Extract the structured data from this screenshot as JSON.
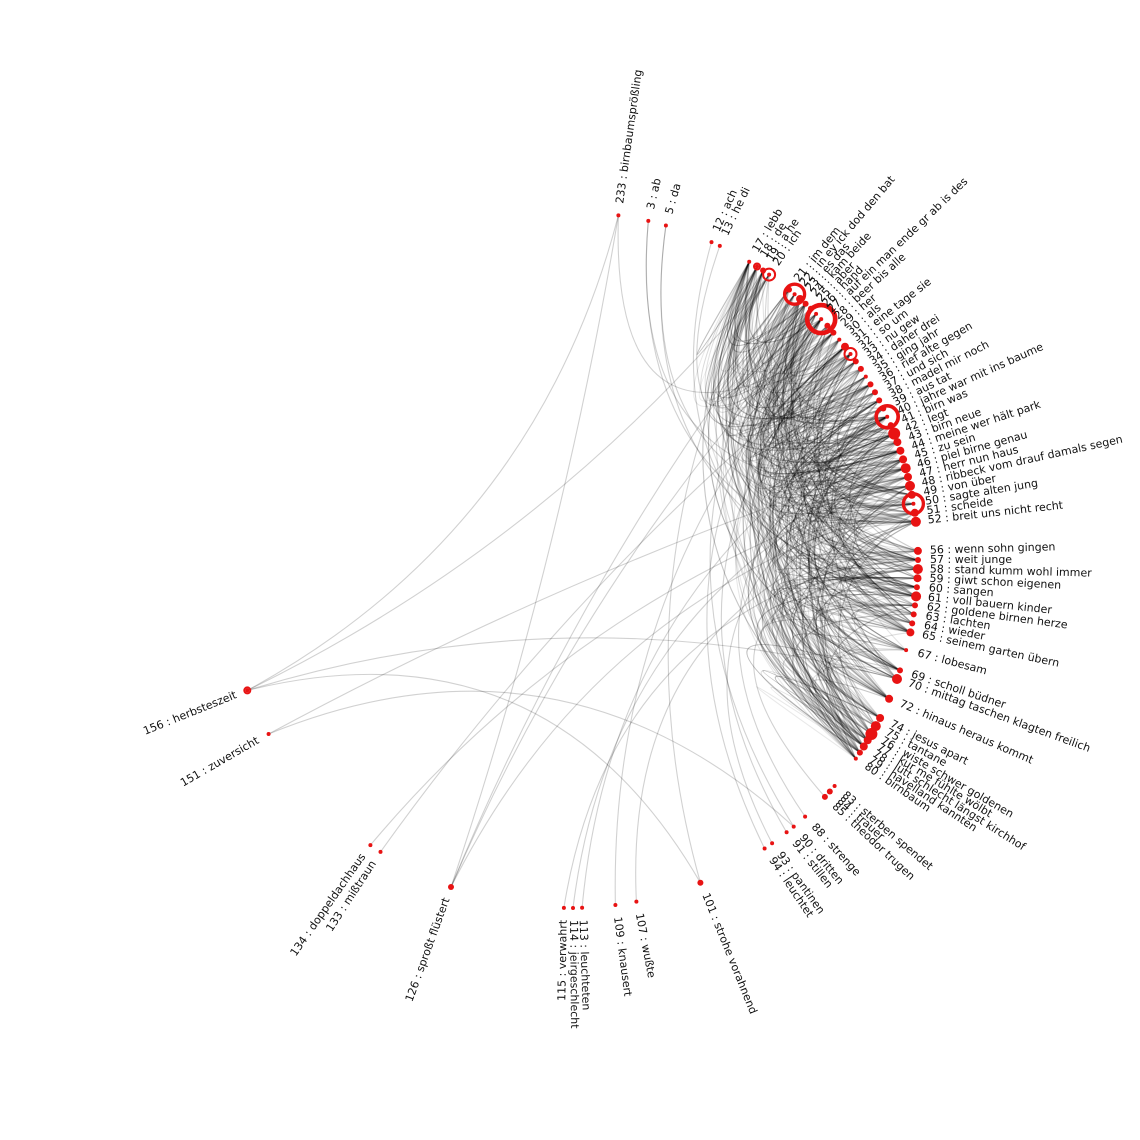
{
  "diagram": {
    "type": "radial-word-graph",
    "colors": {
      "node": "#e81313",
      "link": "#000000",
      "label": "#111111",
      "background": "#ffffff"
    },
    "nodes": [
      {
        "id": 233,
        "label": "233 : birnbaumsprößling",
        "angle": -82,
        "r": 2,
        "ring": false
      },
      {
        "id": 3,
        "label": "3 : ab",
        "angle": -77,
        "r": 2,
        "ring": false
      },
      {
        "id": 5,
        "label": "5 : da",
        "angle": -74,
        "r": 2,
        "ring": false
      },
      {
        "id": 12,
        "label": "12 : ach",
        "angle": -66,
        "r": 2,
        "ring": false
      },
      {
        "id": 13,
        "label": "13 : he di",
        "angle": -64.5,
        "r": 2,
        "ring": false
      },
      {
        "id": 17,
        "label": "17 : lebb",
        "angle": -59,
        "r": 2,
        "ring": false
      },
      {
        "id": 18,
        "label": "18 : de",
        "angle": -57.5,
        "r": 3,
        "ring": true
      },
      {
        "id": 19,
        "label": "19 : a he",
        "angle": -56.3,
        "r": 3,
        "ring": false
      },
      {
        "id": 20,
        "label": "20 : ich",
        "angle": -55.1,
        "r": 6,
        "ring": true
      },
      {
        "id": 21,
        "label": "21 : im dem",
        "angle": -51,
        "r": 3,
        "ring": false
      },
      {
        "id": 22,
        "label": "22 : in ey ick dod den bat",
        "angle": -49.8,
        "r": 10,
        "ring": true
      },
      {
        "id": 23,
        "label": "23 : es das",
        "angle": -48.6,
        "r": 4,
        "ring": false
      },
      {
        "id": 24,
        "label": "24 : kam beide",
        "angle": -47.4,
        "r": 3,
        "ring": false
      },
      {
        "id": 25,
        "label": "25 : aber",
        "angle": -46.2,
        "r": 3,
        "ring": false
      },
      {
        "id": 26,
        "label": "26 : hand",
        "angle": -45,
        "r": 2,
        "ring": false
      },
      {
        "id": 27,
        "label": "27 : auf ein man ende gr ab is des",
        "angle": -43.8,
        "r": 14,
        "ring": true
      },
      {
        "id": 28,
        "label": "28 : beer bis alle",
        "angle": -42.3,
        "r": 3,
        "ring": false
      },
      {
        "id": 29,
        "label": "29 : her",
        "angle": -40.8,
        "r": 3,
        "ring": false
      },
      {
        "id": 30,
        "label": "30 : als",
        "angle": -39.3,
        "r": 2,
        "ring": false
      },
      {
        "id": 31,
        "label": "31 : eine tage sie",
        "angle": -37.8,
        "r": 4,
        "ring": false
      },
      {
        "id": 32,
        "label": "32 : so um",
        "angle": -36.3,
        "r": 6,
        "ring": true
      },
      {
        "id": 33,
        "label": "33 : nu gew",
        "angle": -34.8,
        "r": 3,
        "ring": false
      },
      {
        "id": 34,
        "label": "34 : daher drei",
        "angle": -33.3,
        "r": 3,
        "ring": false
      },
      {
        "id": 35,
        "label": "35 : ging jahr",
        "angle": -31.8,
        "r": 2,
        "ring": false
      },
      {
        "id": 36,
        "label": "36 : rief alte gegen",
        "angle": -30.3,
        "r": 3,
        "ring": false
      },
      {
        "id": 37,
        "label": "37 : und sich",
        "angle": -28.8,
        "r": 3,
        "ring": false
      },
      {
        "id": 38,
        "label": "38 : madel mir noch",
        "angle": -27.3,
        "r": 3,
        "ring": false
      },
      {
        "id": 39,
        "label": "39 : aus tat",
        "angle": -25.8,
        "r": 3,
        "ring": false
      },
      {
        "id": 40,
        "label": "40 : jahre war mit ins baume",
        "angle": -24.3,
        "r": 11,
        "ring": true
      },
      {
        "id": 41,
        "label": "41 : birn was",
        "angle": -22.8,
        "r": 3,
        "ring": false
      },
      {
        "id": 42,
        "label": "42 : legt",
        "angle": -21.3,
        "r": 6,
        "ring": false
      },
      {
        "id": 43,
        "label": "43 : birn neue",
        "angle": -19.8,
        "r": 4,
        "ring": false
      },
      {
        "id": 44,
        "label": "44 : meine wer hält park",
        "angle": -18.3,
        "r": 4,
        "ring": false
      },
      {
        "id": 45,
        "label": "45 : zu sein",
        "angle": -16.8,
        "r": 4,
        "ring": false
      },
      {
        "id": 46,
        "label": "46 : piel birne genau",
        "angle": -15.3,
        "r": 5,
        "ring": false
      },
      {
        "id": 47,
        "label": "47 : herr nun haus",
        "angle": -13.8,
        "r": 4,
        "ring": false
      },
      {
        "id": 48,
        "label": "48 : ribbeck vom drauf damals segen",
        "angle": -12.3,
        "r": 5,
        "ring": false
      },
      {
        "id": 49,
        "label": "49 : von über",
        "angle": -10.8,
        "r": 4,
        "ring": false
      },
      {
        "id": 50,
        "label": "50 : sagte alten jung",
        "angle": -9.3,
        "r": 10,
        "ring": true
      },
      {
        "id": 51,
        "label": "51 : scheide",
        "angle": -7.8,
        "r": 4,
        "ring": false
      },
      {
        "id": 52,
        "label": "52 : breit uns nicht recht",
        "angle": -6.3,
        "r": 5,
        "ring": false
      },
      {
        "id": 56,
        "label": "56 : wenn sohn gingen",
        "angle": -1.5,
        "r": 4,
        "ring": false
      },
      {
        "id": 57,
        "label": "57 : weit junge",
        "angle": 0.0,
        "r": 3,
        "ring": false
      },
      {
        "id": 58,
        "label": "58 : stand kumm wohl immer",
        "angle": 1.5,
        "r": 5,
        "ring": false
      },
      {
        "id": 59,
        "label": "59 : giwt schon eigenen",
        "angle": 3.0,
        "r": 4,
        "ring": false
      },
      {
        "id": 60,
        "label": "60 : sangen",
        "angle": 4.5,
        "r": 3,
        "ring": false
      },
      {
        "id": 61,
        "label": "61 : voll bauern kinder",
        "angle": 6.0,
        "r": 5,
        "ring": false
      },
      {
        "id": 62,
        "label": "62 : goldene birnen herze",
        "angle": 7.5,
        "r": 3,
        "ring": false
      },
      {
        "id": 63,
        "label": "63 : lachten",
        "angle": 9.0,
        "r": 3,
        "ring": false
      },
      {
        "id": 64,
        "label": "64 : wieder",
        "angle": 10.5,
        "r": 3,
        "ring": false
      },
      {
        "id": 65,
        "label": "65 : seinem garten übern",
        "angle": 12.0,
        "r": 4,
        "ring": false
      },
      {
        "id": 67,
        "label": "67 : lobesam",
        "angle": 15.0,
        "r": 2,
        "ring": false
      },
      {
        "id": 69,
        "label": "69 : scholl büdner",
        "angle": 18.5,
        "r": 3,
        "ring": false
      },
      {
        "id": 70,
        "label": "70 : mittag taschen klagten freilich",
        "angle": 20.0,
        "r": 5,
        "ring": false
      },
      {
        "id": 72,
        "label": "72 : hinaus heraus kommt",
        "angle": 23.5,
        "r": 4,
        "ring": false
      },
      {
        "id": 74,
        "label": "74 : jesus apart",
        "angle": 27.0,
        "r": 4,
        "ring": false
      },
      {
        "id": 75,
        "label": "75 : tantane",
        "angle": 28.5,
        "r": 5,
        "ring": false
      },
      {
        "id": 76,
        "label": "76 : wiste schwer goldenen",
        "angle": 30.0,
        "r": 6,
        "ring": false
      },
      {
        "id": 77,
        "label": "77 : kur me fühlte wölbt",
        "angle": 31.2,
        "r": 4,
        "ring": false
      },
      {
        "id": 78,
        "label": "78 : lütt schlecht längst kirchhof",
        "angle": 32.4,
        "r": 4,
        "ring": false
      },
      {
        "id": 79,
        "label": "79 : havelland kannten",
        "angle": 33.6,
        "r": 3,
        "ring": false
      },
      {
        "id": 80,
        "label": "80 : birnbaum",
        "angle": 34.8,
        "r": 2,
        "ring": false
      },
      {
        "id": 83,
        "label": "83 : sterben spendet",
        "angle": 40.5,
        "r": 2,
        "ring": false
      },
      {
        "id": 84,
        "label": "84 : trauer",
        "angle": 41.7,
        "r": 3,
        "ring": false
      },
      {
        "id": 85,
        "label": "85 : theodor trugen",
        "angle": 42.9,
        "r": 3,
        "ring": false
      },
      {
        "id": 88,
        "label": "88 : strenge",
        "angle": 47.5,
        "r": 2,
        "ring": false
      },
      {
        "id": 90,
        "label": "90 : dritten",
        "angle": 50.0,
        "r": 2,
        "ring": false
      },
      {
        "id": 91,
        "label": "91 : stillen",
        "angle": 51.5,
        "r": 2,
        "ring": false
      },
      {
        "id": 93,
        "label": "93 : pantinen",
        "angle": 54.5,
        "r": 2,
        "ring": false
      },
      {
        "id": 94,
        "label": "94 : leuchtet",
        "angle": 56.0,
        "r": 2,
        "ring": false
      },
      {
        "id": 101,
        "label": "101 : strohe vorahnend",
        "angle": 68.0,
        "r": 3,
        "ring": false
      },
      {
        "id": 107,
        "label": "107 : wußte",
        "angle": 79.0,
        "r": 2,
        "ring": false
      },
      {
        "id": 109,
        "label": "109 : knausert",
        "angle": 82.5,
        "r": 2,
        "ring": false
      },
      {
        "id": 113,
        "label": "113 : leuchteten",
        "angle": 88.0,
        "r": 2,
        "ring": false
      },
      {
        "id": 114,
        "label": "114 : jeirgeschlecht",
        "angle": 89.5,
        "r": 2,
        "ring": false
      },
      {
        "id": 115,
        "label": "115 : verwahrt",
        "angle": 91.0,
        "r": 2,
        "ring": false
      },
      {
        "id": 126,
        "label": "126 : sproßt flüstert",
        "angle": 110.0,
        "r": 3,
        "ring": false
      },
      {
        "id": 133,
        "label": "133 : mißtraun",
        "angle": 123.0,
        "r": 2,
        "ring": false
      },
      {
        "id": 134,
        "label": "134 : doppeldachhaus",
        "angle": 125.0,
        "r": 2,
        "ring": false
      },
      {
        "id": 151,
        "label": "151 : zuversicht",
        "angle": 150.0,
        "r": 2,
        "ring": false
      },
      {
        "id": 156,
        "label": "156 : herbsteszeit",
        "angle": 158.0,
        "r": 3,
        "ring": true
      }
    ],
    "links": [
      [
        233,
        126
      ],
      [
        233,
        156
      ],
      [
        233,
        30
      ],
      [
        3,
        48
      ],
      [
        3,
        58
      ],
      [
        5,
        52
      ],
      [
        5,
        61
      ],
      [
        12,
        64
      ],
      [
        13,
        42
      ],
      [
        156,
        101
      ],
      [
        156,
        20
      ],
      [
        156,
        70
      ],
      [
        151,
        90
      ],
      [
        151,
        45
      ],
      [
        126,
        22
      ],
      [
        126,
        27
      ],
      [
        126,
        50
      ],
      [
        133,
        32
      ],
      [
        134,
        48
      ],
      [
        113,
        40
      ],
      [
        114,
        46
      ],
      [
        115,
        56
      ],
      [
        109,
        29
      ],
      [
        107,
        52
      ],
      [
        101,
        20
      ],
      [
        94,
        27
      ],
      [
        93,
        46
      ],
      [
        91,
        31
      ],
      [
        90,
        22
      ],
      [
        88,
        40
      ],
      [
        85,
        58
      ]
    ]
  }
}
